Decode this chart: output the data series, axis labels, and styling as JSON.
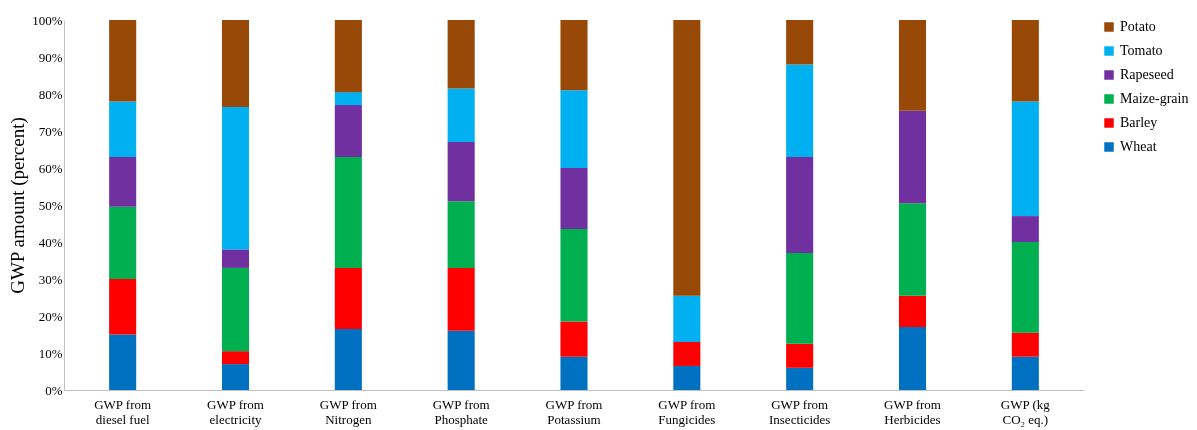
{
  "chart_data": {
    "type": "bar",
    "stacked": true,
    "ylabel": "GWP  amount (percent)",
    "categories": [
      "GWP from diesel fuel",
      "GWP from electricity",
      "GWP from Nitrogen",
      "GWP from Phosphate",
      "GWP from Potassium",
      "GWP from Fungicides",
      "GWP from Insecticides",
      "GWP from Herbicides",
      "GWP (kg CO₂ eq.)"
    ],
    "series": [
      {
        "name": "Wheat",
        "color": "#0070c0",
        "values": [
          15,
          7,
          16.5,
          16,
          9,
          6.5,
          6,
          17,
          9
        ]
      },
      {
        "name": "Barley",
        "color": "#ff0000",
        "values": [
          15,
          3.5,
          16.5,
          17,
          9.5,
          6.5,
          6.5,
          8.5,
          6.5
        ]
      },
      {
        "name": "Maize-grain",
        "color": "#00b050",
        "values": [
          19.5,
          22.5,
          30,
          18,
          25,
          0,
          24.5,
          25,
          24.5
        ]
      },
      {
        "name": "Rapeseed",
        "color": "#7030a0",
        "values": [
          13.5,
          5,
          14,
          16,
          16.5,
          0,
          26,
          25,
          7
        ]
      },
      {
        "name": "Tomato",
        "color": "#00b0f0",
        "values": [
          15,
          38.5,
          3.5,
          14.5,
          21,
          12.5,
          25,
          0,
          31
        ]
      },
      {
        "name": "Potato",
        "color": "#984807",
        "values": [
          22,
          23.5,
          19.5,
          18.5,
          19,
          74.5,
          12,
          24.5,
          22
        ]
      }
    ],
    "ylim": [
      0,
      100
    ],
    "yticks": [
      {
        "value": 0,
        "label": "0%"
      },
      {
        "value": 10,
        "label": "10%"
      },
      {
        "value": 20,
        "label": "20%"
      },
      {
        "value": 30,
        "label": "30%"
      },
      {
        "value": 40,
        "label": "40%"
      },
      {
        "value": 50,
        "label": "50%"
      },
      {
        "value": 60,
        "label": "60%"
      },
      {
        "value": 70,
        "label": "70%"
      },
      {
        "value": 80,
        "label": "80%"
      },
      {
        "value": 90,
        "label": "90%"
      },
      {
        "value": 100,
        "label": "100%"
      }
    ],
    "grid": false,
    "legend": "right"
  }
}
